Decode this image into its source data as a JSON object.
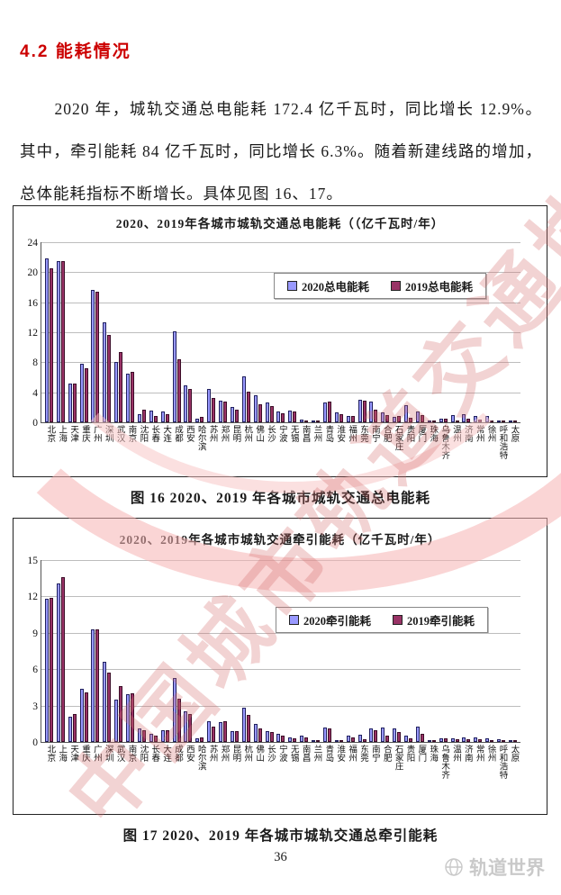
{
  "page": {
    "section_heading": "4.2  能耗情况",
    "paragraph": "2020 年，城轨交通总电能耗 172.4 亿千瓦时，同比增长 12.9%。其中，牵引能耗 84 亿千瓦时，同比增长 6.3%。随着新建线路的增加，总体能耗指标不断增长。具体见图 16、17。",
    "figure16_caption": "图 16  2020、2019 年各城市城轨交通总电能耗",
    "figure17_caption": "图 17  2020、2019 年各城市城轨交通总牵引能耗",
    "page_number": "36",
    "watermark_diagonal": "中国城市轨道交通协会",
    "watermark_bottom": "轨道世界"
  },
  "colors": {
    "heading_red": "#cc0000",
    "series_2020": "#9999ff",
    "series_2019": "#993366",
    "watermark_pink": "#f6b2b2",
    "watermark_red_text": "#d56e6e",
    "watermark_gray": "#c9c9c9"
  },
  "chart_data": [
    {
      "type": "bar",
      "title": "2020、2019年各城市城轨交通总电能耗（（亿千瓦时/年）",
      "ylabel": "亿千瓦时/年",
      "ylim": [
        0,
        24
      ],
      "ytick_step": 4,
      "grid": true,
      "legend_position": "upper-right-inside",
      "categories": [
        "北京",
        "上海",
        "天津",
        "重庆",
        "广州",
        "深圳",
        "武汉",
        "南京",
        "沈阳",
        "长春",
        "大连",
        "成都",
        "西安",
        "哈尔滨",
        "苏州",
        "郑州",
        "昆明",
        "杭州",
        "佛山",
        "长沙",
        "宁波",
        "无锡",
        "南昌",
        "兰州",
        "青岛",
        "淮安",
        "福州",
        "东莞",
        "南宁",
        "合肥",
        "石家庄",
        "贵阳",
        "厦门",
        "珠海",
        "乌鲁木齐",
        "温州",
        "济南",
        "常州",
        "徐州",
        "呼和浩特",
        "太原"
      ],
      "series": [
        {
          "name": "2020总电能耗",
          "values": [
            21.9,
            21.5,
            5.2,
            7.8,
            17.6,
            13.3,
            8.1,
            6.5,
            1.1,
            1.6,
            1.5,
            12.1,
            4.9,
            0.5,
            4.5,
            2.9,
            2.0,
            6.1,
            3.6,
            2.6,
            1.4,
            1.6,
            0.4,
            0.1,
            2.7,
            1.3,
            0.8,
            3.0,
            2.8,
            1.3,
            0.7,
            2.3,
            1.5,
            0.1,
            0.5,
            1.0,
            1.1,
            0.9,
            0.8,
            0.3,
            0.1
          ]
        },
        {
          "name": "2019总电能耗",
          "values": [
            20.5,
            21.5,
            5.2,
            7.2,
            17.4,
            11.6,
            9.4,
            6.7,
            1.7,
            0.8,
            1.1,
            8.4,
            4.4,
            0.7,
            3.3,
            2.8,
            1.7,
            4.1,
            2.4,
            2.2,
            1.2,
            1.4,
            0.3,
            0.1,
            2.8,
            1.1,
            0.9,
            2.9,
            1.7,
            1.0,
            0.9,
            0.6,
            1.0,
            0.1,
            0.5,
            0.3,
            0.5,
            0.4,
            0.2,
            0.1,
            0.0
          ]
        }
      ]
    },
    {
      "type": "bar",
      "title": "2020、2019年各城市城轨交通牵引能耗（亿千瓦时/年）",
      "ylabel": "亿千瓦时/年",
      "ylim": [
        0,
        15
      ],
      "ytick_step": 3,
      "grid": true,
      "legend_position": "upper-right-inside",
      "categories": [
        "北京",
        "上海",
        "天津",
        "重庆",
        "广州",
        "深圳",
        "武汉",
        "南京",
        "沈阳",
        "长春",
        "大连",
        "成都",
        "西安",
        "哈尔滨",
        "苏州",
        "郑州",
        "昆明",
        "杭州",
        "佛山",
        "长沙",
        "宁波",
        "无锡",
        "南昌",
        "兰州",
        "青岛",
        "淮安",
        "福州",
        "东莞",
        "南宁",
        "合肥",
        "石家庄",
        "贵阳",
        "厦门",
        "珠海",
        "乌鲁木齐",
        "温州",
        "济南",
        "常州",
        "徐州",
        "呼和浩特",
        "太原"
      ],
      "series": [
        {
          "name": "2020牵引能耗",
          "values": [
            11.8,
            13.1,
            2.1,
            4.4,
            9.3,
            6.6,
            3.5,
            3.9,
            1.1,
            0.7,
            1.0,
            5.3,
            2.5,
            0.3,
            1.7,
            1.6,
            0.9,
            2.8,
            1.5,
            0.9,
            0.7,
            0.4,
            0.5,
            0.1,
            1.2,
            0.1,
            0.5,
            0.6,
            1.1,
            1.2,
            1.1,
            0.5,
            1.3,
            0.1,
            0.3,
            0.3,
            0.4,
            0.4,
            0.3,
            0.2,
            0.1
          ]
        },
        {
          "name": "2019牵引能耗",
          "values": [
            11.9,
            13.6,
            2.3,
            4.1,
            9.3,
            5.7,
            4.6,
            4.0,
            1.0,
            0.5,
            1.0,
            3.6,
            2.3,
            0.4,
            1.3,
            1.7,
            0.9,
            2.2,
            1.1,
            0.8,
            0.5,
            0.3,
            0.4,
            0.1,
            1.1,
            0.1,
            0.4,
            0.2,
            1.0,
            0.5,
            0.8,
            0.3,
            0.7,
            0.1,
            0.3,
            0.2,
            0.2,
            0.2,
            0.1,
            0.1,
            0.1
          ]
        }
      ]
    }
  ]
}
